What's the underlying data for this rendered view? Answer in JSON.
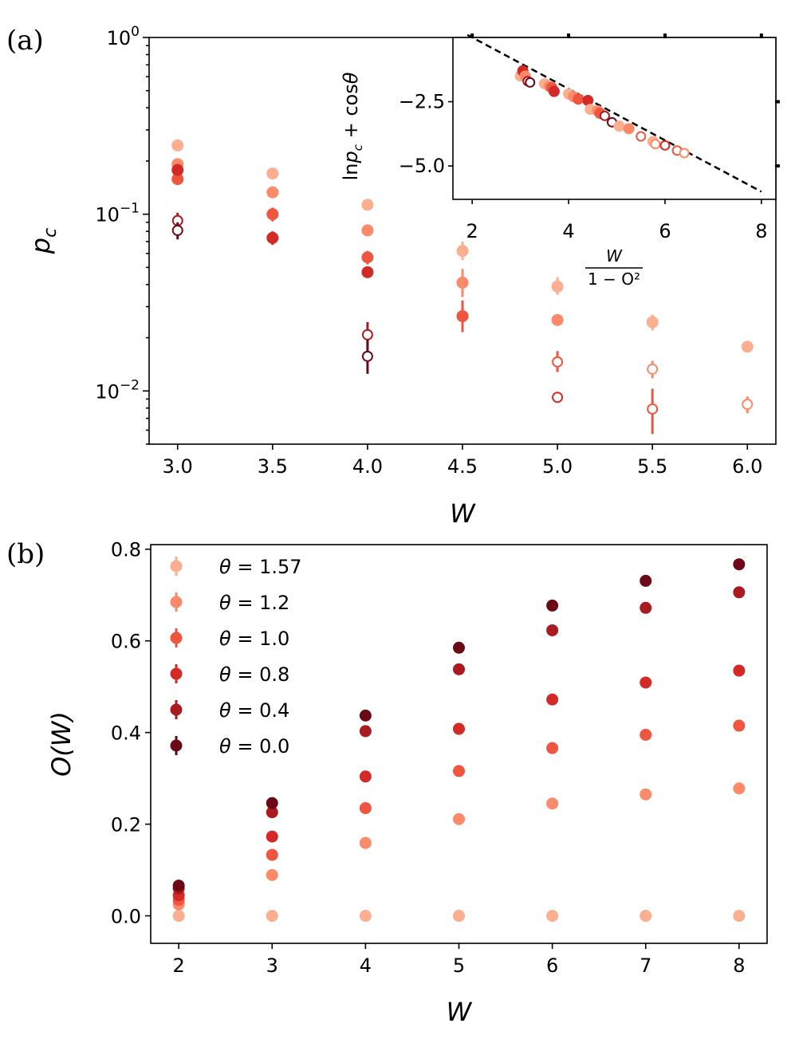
{
  "colors": {
    "theta_1_57": "#fcae91",
    "theta_1_2": "#fb8a6a",
    "theta_1_0": "#f0553f",
    "theta_0_8": "#d42a27",
    "theta_0_4": "#a91a21",
    "theta_0_0": "#6b0a16"
  },
  "panel_a": {
    "letter": "(a)"
  },
  "panel_b": {
    "letter": "(b)"
  },
  "chart_data": [
    {
      "id": "a-main",
      "type": "scatter",
      "title": "",
      "xlabel": "W",
      "ylabel": "p_c",
      "yscale": "log",
      "xlim": [
        2.85,
        6.15
      ],
      "ylim": [
        0.005,
        1.0
      ],
      "xticks": [
        3.0,
        3.5,
        4.0,
        4.5,
        5.0,
        5.5,
        6.0
      ],
      "xtick_labels": [
        "3.0",
        "3.5",
        "4.0",
        "4.5",
        "5.0",
        "5.5",
        "6.0"
      ],
      "yticks": [
        {
          "value": 1.0,
          "base": "10",
          "exp": "0"
        },
        {
          "value": 0.1,
          "base": "10",
          "exp": "−1"
        },
        {
          "value": 0.01,
          "base": "10",
          "exp": "−2"
        }
      ],
      "series": [
        {
          "name": "θ = 1.57",
          "color": "#fcae91",
          "points": [
            {
              "x": 3.0,
              "y": 0.245,
              "err": [
                0.245,
                0.245
              ],
              "filled": true
            },
            {
              "x": 3.5,
              "y": 0.17,
              "err": [
                0.17,
                0.17
              ],
              "filled": true
            },
            {
              "x": 4.0,
              "y": 0.113,
              "err": [
                0.113,
                0.113
              ],
              "filled": true
            },
            {
              "x": 4.5,
              "y": 0.062,
              "err": [
                0.055,
                0.07
              ],
              "filled": true
            },
            {
              "x": 5.0,
              "y": 0.039,
              "err": [
                0.035,
                0.044
              ],
              "filled": true
            },
            {
              "x": 5.5,
              "y": 0.0245,
              "err": [
                0.022,
                0.027
              ],
              "filled": true
            },
            {
              "x": 6.0,
              "y": 0.0178,
              "err": [
                0.0165,
                0.0192
              ],
              "filled": true
            }
          ]
        },
        {
          "name": "θ = 1.2",
          "color": "#fb8a6a",
          "points": [
            {
              "x": 3.0,
              "y": 0.192,
              "err": [
                0.192,
                0.192
              ],
              "filled": true
            },
            {
              "x": 3.5,
              "y": 0.133,
              "err": [
                0.133,
                0.133
              ],
              "filled": true
            },
            {
              "x": 4.0,
              "y": 0.081,
              "err": [
                0.081,
                0.081
              ],
              "filled": true
            },
            {
              "x": 4.5,
              "y": 0.041,
              "err": [
                0.034,
                0.049
              ],
              "filled": true
            },
            {
              "x": 5.0,
              "y": 0.0252,
              "err": [
                0.0252,
                0.0252
              ],
              "filled": true
            },
            {
              "x": 5.5,
              "y": 0.0133,
              "err": [
                0.0118,
                0.0148
              ],
              "filled": false
            },
            {
              "x": 6.0,
              "y": 0.0084,
              "err": [
                0.0075,
                0.0093
              ],
              "filled": false
            }
          ]
        },
        {
          "name": "θ = 1.0",
          "color": "#f0553f",
          "points": [
            {
              "x": 3.0,
              "y": 0.158,
              "err": [
                0.158,
                0.158
              ],
              "filled": true
            },
            {
              "x": 3.5,
              "y": 0.1,
              "err": [
                0.091,
                0.109
              ],
              "filled": true
            },
            {
              "x": 4.0,
              "y": 0.057,
              "err": [
                0.052,
                0.062
              ],
              "filled": true
            },
            {
              "x": 4.5,
              "y": 0.0265,
              "err": [
                0.0215,
                0.0325
              ],
              "filled": true
            },
            {
              "x": 5.0,
              "y": 0.0146,
              "err": [
                0.0128,
                0.0168
              ],
              "filled": false
            },
            {
              "x": 5.5,
              "y": 0.0079,
              "err": [
                0.0057,
                0.0103
              ],
              "filled": false
            }
          ]
        },
        {
          "name": "θ = 0.8",
          "color": "#d42a27",
          "points": [
            {
              "x": 3.0,
              "y": 0.178,
              "err": [
                0.178,
                0.178
              ],
              "filled": true
            },
            {
              "x": 3.5,
              "y": 0.0735,
              "err": [
                0.067,
                0.08
              ],
              "filled": true
            },
            {
              "x": 4.0,
              "y": 0.047,
              "err": [
                0.047,
                0.047
              ],
              "filled": true
            },
            {
              "x": 5.0,
              "y": 0.0092,
              "err": [
                0.0092,
                0.0092
              ],
              "filled": false
            }
          ]
        },
        {
          "name": "θ = 0.4",
          "color": "#a91a21",
          "points": [
            {
              "x": 3.0,
              "y": 0.092,
              "err": [
                0.083,
                0.102
              ],
              "filled": false
            },
            {
              "x": 4.0,
              "y": 0.0208,
              "err": [
                0.0175,
                0.0245
              ],
              "filled": false
            }
          ]
        },
        {
          "name": "θ = 0.0",
          "color": "#6b0a16",
          "points": [
            {
              "x": 3.0,
              "y": 0.081,
              "err": [
                0.072,
                0.09
              ],
              "filled": false
            },
            {
              "x": 4.0,
              "y": 0.0157,
              "err": [
                0.0125,
                0.0195
              ],
              "filled": false
            }
          ]
        }
      ]
    },
    {
      "id": "a-inset",
      "type": "scatter",
      "xlabel": "W / (1 − O²)",
      "xlabel_num": "W",
      "xlabel_den": "1 − O²",
      "ylabel": "ln p_c + cosθ",
      "ylabel_parts": {
        "ln": "ln",
        "p": "p",
        "sub": "c",
        "rest": " + cos",
        "theta": "θ"
      },
      "xlim": [
        1.6,
        8.3
      ],
      "ylim": [
        -6.3,
        0.0
      ],
      "xticks": [
        2,
        4,
        6,
        8
      ],
      "xtick_labels": [
        "2",
        "4",
        "6",
        "8"
      ],
      "yticks": [
        -2.5,
        -5.0
      ],
      "ytick_labels": [
        "−2.5",
        "−5.0"
      ],
      "fit_line": {
        "x": [
          1.9,
          8.0
        ],
        "y": [
          0.1,
          -6.0
        ],
        "style": "dashed"
      },
      "points": [
        {
          "x": 3.0,
          "y": -1.5,
          "color": "#fcae91",
          "filled": true
        },
        {
          "x": 3.05,
          "y": -1.3,
          "color": "#d42a27",
          "filled": true
        },
        {
          "x": 3.1,
          "y": -1.5,
          "color": "#fb8a6a",
          "filled": true
        },
        {
          "x": 3.15,
          "y": -1.7,
          "color": "#a91a21",
          "filled": false
        },
        {
          "x": 3.2,
          "y": -1.75,
          "color": "#6b0a16",
          "filled": false
        },
        {
          "x": 3.5,
          "y": -1.8,
          "color": "#fcae91",
          "filled": true
        },
        {
          "x": 3.6,
          "y": -1.9,
          "color": "#fb8a6a",
          "filled": true
        },
        {
          "x": 3.65,
          "y": -1.95,
          "color": "#f0553f",
          "filled": true
        },
        {
          "x": 3.7,
          "y": -2.1,
          "color": "#d42a27",
          "filled": true
        },
        {
          "x": 4.0,
          "y": -2.2,
          "color": "#fcae91",
          "filled": true
        },
        {
          "x": 4.1,
          "y": -2.3,
          "color": "#fb8a6a",
          "filled": true
        },
        {
          "x": 4.2,
          "y": -2.4,
          "color": "#f0553f",
          "filled": true
        },
        {
          "x": 4.4,
          "y": -2.45,
          "color": "#d42a27",
          "filled": true
        },
        {
          "x": 4.45,
          "y": -2.8,
          "color": "#fcae91",
          "filled": true
        },
        {
          "x": 4.6,
          "y": -2.85,
          "color": "#fb8a6a",
          "filled": true
        },
        {
          "x": 4.65,
          "y": -2.95,
          "color": "#f0553f",
          "filled": true
        },
        {
          "x": 4.75,
          "y": -3.05,
          "color": "#a91a21",
          "filled": false
        },
        {
          "x": 4.9,
          "y": -3.3,
          "color": "#6b0a16",
          "filled": false
        },
        {
          "x": 5.05,
          "y": -3.45,
          "color": "#fcae91",
          "filled": true
        },
        {
          "x": 5.25,
          "y": -3.55,
          "color": "#fb8a6a",
          "filled": true
        },
        {
          "x": 5.5,
          "y": -3.85,
          "color": "#f0553f",
          "filled": false
        },
        {
          "x": 5.75,
          "y": -4.05,
          "color": "#fcae91",
          "filled": true
        },
        {
          "x": 5.8,
          "y": -4.15,
          "color": "#fb8a6a",
          "filled": false
        },
        {
          "x": 6.0,
          "y": -4.2,
          "color": "#d42a27",
          "filled": false
        },
        {
          "x": 6.25,
          "y": -4.4,
          "color": "#f0553f",
          "filled": false
        },
        {
          "x": 6.4,
          "y": -4.5,
          "color": "#fb8a6a",
          "filled": false
        }
      ]
    },
    {
      "id": "b",
      "type": "scatter",
      "xlabel": "W",
      "ylabel": "O(W)",
      "xlim": [
        1.7,
        8.3
      ],
      "ylim": [
        -0.06,
        0.81
      ],
      "xticks": [
        2,
        3,
        4,
        5,
        6,
        7,
        8
      ],
      "xtick_labels": [
        "2",
        "3",
        "4",
        "5",
        "6",
        "7",
        "8"
      ],
      "yticks": [
        0.0,
        0.2,
        0.4,
        0.6,
        0.8
      ],
      "ytick_labels": [
        "0.0",
        "0.2",
        "0.4",
        "0.6",
        "0.8"
      ],
      "legend_position": "upper-left",
      "series": [
        {
          "name": "θ = 1.57",
          "label_lhs": "θ",
          "label_rhs": "1.57",
          "color": "#fcae91",
          "x": [
            2,
            3,
            4,
            5,
            6,
            7,
            8
          ],
          "y": [
            0.0,
            0.0,
            0.0,
            0.0,
            0.0,
            0.0,
            0.0
          ]
        },
        {
          "name": "θ = 1.2",
          "label_lhs": "θ",
          "label_rhs": "1.2",
          "color": "#fb8a6a",
          "x": [
            2,
            3,
            4,
            5,
            6,
            7,
            8
          ],
          "y": [
            0.025,
            0.089,
            0.159,
            0.211,
            0.245,
            0.265,
            0.278
          ]
        },
        {
          "name": "θ = 1.0",
          "label_lhs": "θ",
          "label_rhs": "1.0",
          "color": "#f0553f",
          "x": [
            2,
            3,
            4,
            5,
            6,
            7,
            8
          ],
          "y": [
            0.035,
            0.133,
            0.235,
            0.316,
            0.366,
            0.395,
            0.415
          ]
        },
        {
          "name": "θ = 0.8",
          "label_lhs": "θ",
          "label_rhs": "0.8",
          "color": "#d42a27",
          "x": [
            2,
            3,
            4,
            5,
            6,
            7,
            8
          ],
          "y": [
            0.045,
            0.173,
            0.304,
            0.408,
            0.472,
            0.509,
            0.535
          ]
        },
        {
          "name": "θ = 0.4",
          "label_lhs": "θ",
          "label_rhs": "0.4",
          "color": "#a91a21",
          "x": [
            2,
            3,
            4,
            5,
            6,
            7,
            8
          ],
          "y": [
            0.06,
            0.226,
            0.403,
            0.538,
            0.623,
            0.672,
            0.706
          ]
        },
        {
          "name": "θ = 0.0",
          "label_lhs": "θ",
          "label_rhs": "0.0",
          "color": "#6b0a16",
          "x": [
            2,
            3,
            4,
            5,
            6,
            7,
            8
          ],
          "y": [
            0.066,
            0.246,
            0.437,
            0.585,
            0.677,
            0.731,
            0.767
          ]
        }
      ]
    }
  ]
}
